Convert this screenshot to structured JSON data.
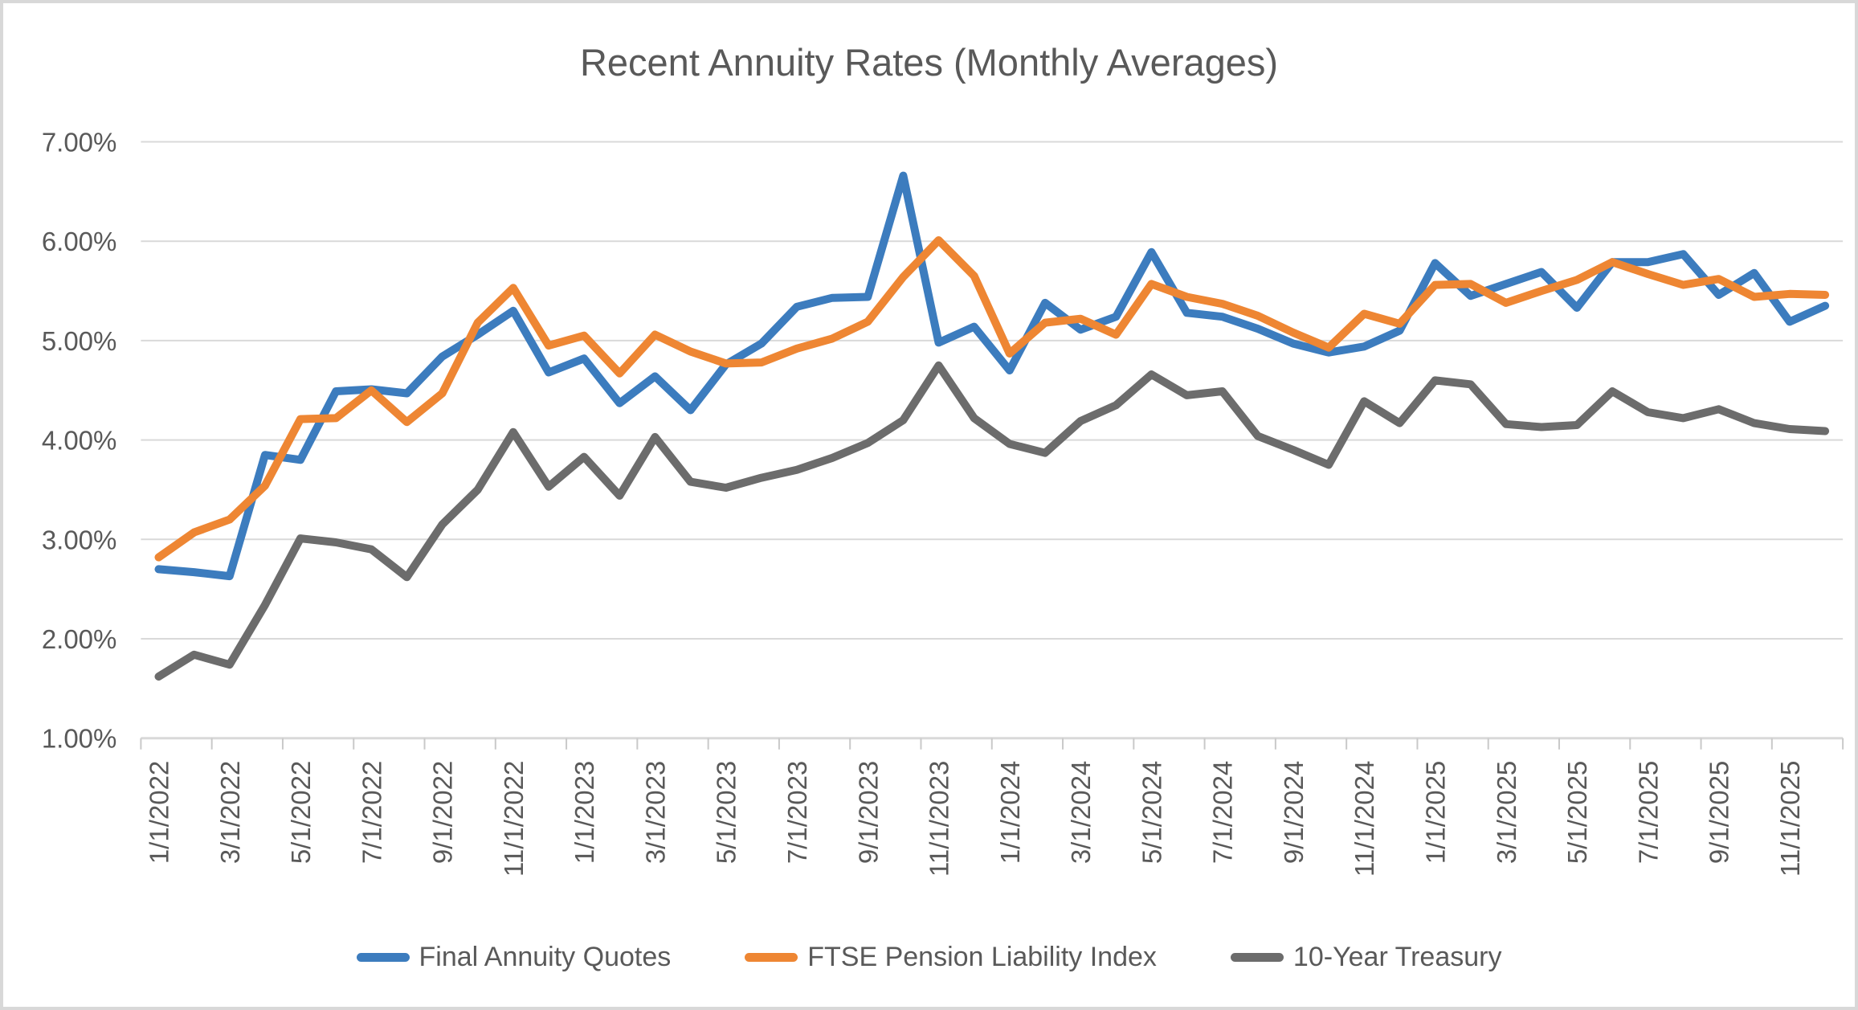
{
  "window": {
    "background": "#ffffff",
    "border_color": "#d8d8d8"
  },
  "title": {
    "text": "Recent Annuity Rates (Monthly Averages)",
    "color": "#595959"
  },
  "y_axis": {
    "tick_labels": [
      "7.00%",
      "6.00%",
      "5.00%",
      "4.00%",
      "3.00%",
      "2.00%",
      "1.00%"
    ],
    "min": 1,
    "max": 7,
    "label_color": "#595959",
    "gridline_color": "#d9d9d9",
    "axis_line_color": "#d9d9d9",
    "tick_mark_color": "#c9c9c9"
  },
  "x_axis": {
    "tick_labels": [
      "1/1/2022",
      "3/1/2022",
      "5/1/2022",
      "7/1/2022",
      "9/1/2022",
      "11/1/2022",
      "1/1/2023",
      "3/1/2023",
      "5/1/2023",
      "7/1/2023",
      "9/1/2023",
      "11/1/2023",
      "1/1/2024",
      "3/1/2024",
      "5/1/2024",
      "7/1/2024",
      "9/1/2024",
      "11/1/2024",
      "1/1/2025",
      "3/1/2025",
      "5/1/2025",
      "7/1/2025",
      "9/1/2025",
      "11/1/2025"
    ],
    "label_color": "#595959"
  },
  "legend": {
    "items": [
      {
        "label": "Final Annuity Quotes",
        "color": "#3c7cbe"
      },
      {
        "label": "FTSE Pension Liability Index",
        "color": "#ee8633"
      },
      {
        "label": "10-Year Treasury",
        "color": "#6c6c6c"
      }
    ]
  },
  "chart_data": {
    "type": "line",
    "title": "Recent Annuity Rates (Monthly Averages)",
    "xlabel": "",
    "ylabel": "",
    "ylim": [
      1,
      7
    ],
    "grid": true,
    "legend_position": "bottom",
    "x": [
      "1/1/2022",
      "2/1/2022",
      "3/1/2022",
      "4/1/2022",
      "5/1/2022",
      "6/1/2022",
      "7/1/2022",
      "8/1/2022",
      "9/1/2022",
      "10/1/2022",
      "11/1/2022",
      "12/1/2022",
      "1/1/2023",
      "2/1/2023",
      "3/1/2023",
      "4/1/2023",
      "5/1/2023",
      "6/1/2023",
      "7/1/2023",
      "8/1/2023",
      "9/1/2023",
      "10/1/2023",
      "11/1/2023",
      "12/1/2023",
      "1/1/2024",
      "2/1/2024",
      "3/1/2024",
      "4/1/2024",
      "5/1/2024",
      "6/1/2024",
      "7/1/2024",
      "8/1/2024",
      "9/1/2024",
      "10/1/2024",
      "11/1/2024",
      "12/1/2024",
      "1/1/2025",
      "2/1/2025",
      "3/1/2025",
      "4/1/2025",
      "5/1/2025",
      "6/1/2025",
      "7/1/2025",
      "8/1/2025",
      "9/1/2025",
      "10/1/2025",
      "11/1/2025",
      "12/1/2025"
    ],
    "series": [
      {
        "name": "Final Annuity Quotes",
        "color": "#3c7cbe",
        "values": [
          2.7,
          2.67,
          2.63,
          3.85,
          3.8,
          4.49,
          4.51,
          4.47,
          4.84,
          5.06,
          5.3,
          4.68,
          4.82,
          4.37,
          4.64,
          4.3,
          4.76,
          4.97,
          5.34,
          5.43,
          5.44,
          6.66,
          4.98,
          5.14,
          4.7,
          5.38,
          5.11,
          5.24,
          5.89,
          5.28,
          5.24,
          5.12,
          4.97,
          4.88,
          4.94,
          5.1,
          5.78,
          5.45,
          5.57,
          5.69,
          5.33,
          5.79,
          5.79,
          5.87,
          5.46,
          5.68,
          5.19,
          5.35
        ]
      },
      {
        "name": "FTSE Pension Liability Index",
        "color": "#ee8633",
        "values": [
          2.82,
          3.07,
          3.2,
          3.54,
          4.21,
          4.22,
          4.5,
          4.18,
          4.47,
          5.18,
          5.53,
          4.95,
          5.05,
          4.67,
          5.06,
          4.89,
          4.77,
          4.78,
          4.92,
          5.02,
          5.19,
          5.64,
          6.01,
          5.65,
          4.87,
          5.18,
          5.22,
          5.06,
          5.57,
          5.44,
          5.37,
          5.25,
          5.08,
          4.93,
          5.27,
          5.17,
          5.56,
          5.57,
          5.38,
          5.5,
          5.61,
          5.79,
          5.67,
          5.56,
          5.62,
          5.44,
          5.47,
          5.46
        ]
      },
      {
        "name": "10-Year Treasury",
        "color": "#6c6c6c",
        "values": [
          1.62,
          1.84,
          1.74,
          2.34,
          3.01,
          2.97,
          2.9,
          2.62,
          3.15,
          3.5,
          4.08,
          3.53,
          3.83,
          3.44,
          4.03,
          3.58,
          3.52,
          3.62,
          3.7,
          3.82,
          3.97,
          4.2,
          4.75,
          4.22,
          3.96,
          3.87,
          4.19,
          4.35,
          4.66,
          4.45,
          4.49,
          4.04,
          3.9,
          3.75,
          4.39,
          4.17,
          4.6,
          4.56,
          4.16,
          4.13,
          4.15,
          4.49,
          4.28,
          4.22,
          4.31,
          4.17,
          4.11,
          4.09
        ]
      }
    ]
  }
}
